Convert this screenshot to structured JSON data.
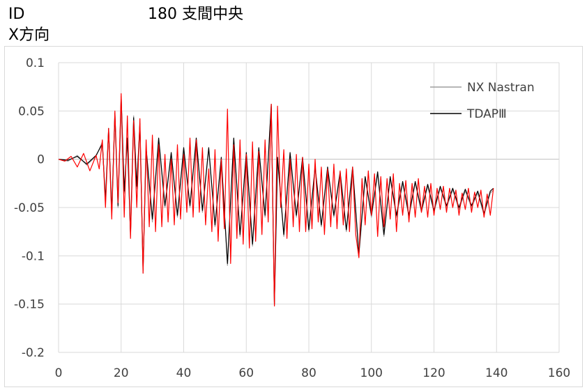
{
  "header": {
    "id_label": "ID",
    "title": "180 支間中央",
    "direction": "X方向"
  },
  "chart_data": {
    "type": "line",
    "xlabel": "",
    "ylabel": "",
    "xlim": [
      0,
      160
    ],
    "ylim": [
      -0.2,
      0.1
    ],
    "x_ticks": [
      0,
      20,
      40,
      60,
      80,
      100,
      120,
      140,
      160
    ],
    "y_ticks": [
      0.1,
      0.05,
      0,
      -0.05,
      -0.1,
      -0.15,
      -0.2
    ],
    "x_tick_labels": [
      "0",
      "20",
      "40",
      "60",
      "80",
      "100",
      "120",
      "140",
      "160"
    ],
    "y_tick_labels": [
      "0.1",
      "0.05",
      "0",
      "-0.05",
      "-0.1",
      "-0.15",
      "-0.2"
    ],
    "grid": true,
    "legend_position": "top-right",
    "series": [
      {
        "name": "NX Nastran",
        "color": "#9e9e9e",
        "x": [
          0,
          3,
          6,
          9,
          12,
          14,
          15,
          16,
          17,
          18,
          19,
          20,
          21,
          22,
          23,
          24,
          25,
          26,
          27,
          28,
          30,
          32,
          34,
          36,
          38,
          40,
          42,
          44,
          46,
          48,
          50,
          52,
          54,
          56,
          58,
          60,
          62,
          64,
          66,
          68,
          69,
          70,
          72,
          74,
          76,
          78,
          80,
          82,
          84,
          86,
          88,
          90,
          92,
          94,
          96,
          98,
          100,
          102,
          104,
          106,
          108,
          110,
          112,
          114,
          116,
          118,
          120,
          122,
          124,
          126,
          128,
          130,
          132,
          134,
          136,
          138,
          139
        ],
        "values": [
          0,
          -0.002,
          0.004,
          -0.006,
          0.003,
          0.018,
          -0.045,
          0.03,
          -0.058,
          0.045,
          -0.05,
          0.062,
          -0.035,
          0.02,
          -0.08,
          0.045,
          -0.03,
          0.035,
          -0.118,
          0.01,
          -0.065,
          0.02,
          -0.05,
          0.005,
          -0.06,
          0.01,
          -0.05,
          0.02,
          -0.055,
          0.01,
          -0.07,
          0.0,
          -0.11,
          0.02,
          -0.08,
          0.005,
          -0.09,
          0.01,
          -0.06,
          0.055,
          -0.152,
          0.0,
          -0.08,
          0.005,
          -0.06,
          0.0,
          -0.075,
          -0.01,
          -0.07,
          -0.01,
          -0.06,
          -0.015,
          -0.075,
          -0.01,
          -0.1,
          -0.02,
          -0.06,
          -0.015,
          -0.08,
          -0.02,
          -0.06,
          -0.025,
          -0.06,
          -0.025,
          -0.055,
          -0.028,
          -0.055,
          -0.03,
          -0.05,
          -0.032,
          -0.052,
          -0.033,
          -0.05,
          -0.035,
          -0.058,
          -0.035,
          -0.032
        ]
      },
      {
        "name": "TDAPⅢ",
        "color": "#000000",
        "x": [
          0,
          3,
          6,
          9,
          12,
          14,
          15,
          16,
          17,
          18,
          19,
          20,
          21,
          22,
          23,
          24,
          25,
          26,
          27,
          28,
          30,
          32,
          34,
          36,
          38,
          40,
          42,
          44,
          46,
          48,
          50,
          52,
          54,
          56,
          58,
          60,
          62,
          64,
          66,
          68,
          69,
          70,
          72,
          74,
          76,
          78,
          80,
          82,
          84,
          86,
          88,
          90,
          92,
          94,
          96,
          98,
          100,
          102,
          104,
          106,
          108,
          110,
          112,
          114,
          116,
          118,
          120,
          122,
          124,
          126,
          128,
          130,
          132,
          134,
          136,
          138,
          139
        ],
        "values": [
          0,
          -0.001,
          0.003,
          -0.005,
          0.004,
          0.016,
          -0.042,
          0.032,
          -0.055,
          0.048,
          -0.048,
          0.065,
          -0.033,
          0.022,
          -0.078,
          0.043,
          -0.028,
          0.037,
          -0.115,
          0.012,
          -0.062,
          0.022,
          -0.048,
          0.007,
          -0.058,
          0.012,
          -0.048,
          0.022,
          -0.053,
          0.012,
          -0.068,
          0.002,
          -0.108,
          0.022,
          -0.078,
          0.007,
          -0.088,
          0.012,
          -0.058,
          0.057,
          -0.15,
          0.002,
          -0.078,
          0.007,
          -0.058,
          0.002,
          -0.073,
          -0.008,
          -0.068,
          -0.008,
          -0.058,
          -0.013,
          -0.073,
          -0.008,
          -0.098,
          -0.018,
          -0.058,
          -0.013,
          -0.078,
          -0.018,
          -0.058,
          -0.023,
          -0.058,
          -0.023,
          -0.053,
          -0.026,
          -0.053,
          -0.028,
          -0.048,
          -0.03,
          -0.05,
          -0.031,
          -0.048,
          -0.033,
          -0.056,
          -0.033,
          -0.03
        ]
      },
      {
        "name": "",
        "color": "#ff0000",
        "x": [
          0,
          2,
          4,
          6,
          8,
          10,
          12,
          13,
          14,
          15,
          16,
          17,
          18,
          19,
          20,
          21,
          22,
          23,
          24,
          25,
          26,
          27,
          28,
          29,
          30,
          31,
          32,
          33,
          34,
          35,
          36,
          37,
          38,
          39,
          40,
          41,
          42,
          43,
          44,
          45,
          46,
          47,
          48,
          49,
          50,
          51,
          52,
          53,
          54,
          55,
          56,
          57,
          58,
          59,
          60,
          61,
          62,
          63,
          64,
          65,
          66,
          67,
          68,
          69,
          70,
          71,
          72,
          73,
          74,
          75,
          76,
          77,
          78,
          79,
          80,
          81,
          82,
          83,
          84,
          85,
          86,
          87,
          88,
          89,
          90,
          91,
          92,
          93,
          94,
          95,
          96,
          97,
          98,
          99,
          100,
          101,
          102,
          103,
          104,
          105,
          106,
          107,
          108,
          109,
          110,
          111,
          112,
          113,
          114,
          115,
          116,
          117,
          118,
          119,
          120,
          121,
          122,
          123,
          124,
          125,
          126,
          127,
          128,
          129,
          130,
          131,
          132,
          133,
          134,
          135,
          136,
          137,
          138,
          139
        ],
        "values": [
          0,
          -0.002,
          0.003,
          -0.008,
          0.006,
          -0.012,
          0.004,
          -0.01,
          0.02,
          -0.05,
          0.032,
          -0.062,
          0.05,
          -0.045,
          0.068,
          -0.06,
          0.045,
          -0.082,
          0.04,
          -0.05,
          0.042,
          -0.118,
          0.02,
          -0.07,
          0.025,
          -0.075,
          0.015,
          -0.07,
          0.005,
          -0.065,
          0.0,
          -0.068,
          0.015,
          -0.062,
          0.005,
          -0.055,
          0.022,
          -0.06,
          0.02,
          -0.055,
          0.012,
          -0.068,
          -0.01,
          -0.075,
          0.01,
          -0.085,
          0.0,
          -0.072,
          0.052,
          -0.108,
          0.015,
          -0.082,
          0.02,
          -0.088,
          0.005,
          -0.092,
          0.018,
          -0.085,
          0.008,
          -0.078,
          0.02,
          -0.065,
          0.057,
          -0.152,
          0.055,
          -0.05,
          0.01,
          -0.082,
          0.0,
          -0.07,
          0.005,
          -0.075,
          0.002,
          -0.075,
          -0.005,
          -0.072,
          0.0,
          -0.065,
          -0.008,
          -0.078,
          -0.01,
          -0.07,
          -0.005,
          -0.072,
          -0.012,
          -0.068,
          -0.01,
          -0.075,
          -0.008,
          -0.078,
          -0.102,
          -0.02,
          -0.068,
          -0.012,
          -0.058,
          -0.015,
          -0.08,
          -0.018,
          -0.07,
          -0.02,
          -0.062,
          -0.015,
          -0.075,
          -0.025,
          -0.058,
          -0.022,
          -0.065,
          -0.025,
          -0.06,
          -0.02,
          -0.055,
          -0.028,
          -0.06,
          -0.025,
          -0.058,
          -0.03,
          -0.052,
          -0.028,
          -0.055,
          -0.03,
          -0.05,
          -0.032,
          -0.058,
          -0.035,
          -0.052,
          -0.03,
          -0.055,
          -0.034,
          -0.05,
          -0.032,
          -0.06,
          -0.036,
          -0.058,
          -0.03
        ]
      }
    ]
  }
}
